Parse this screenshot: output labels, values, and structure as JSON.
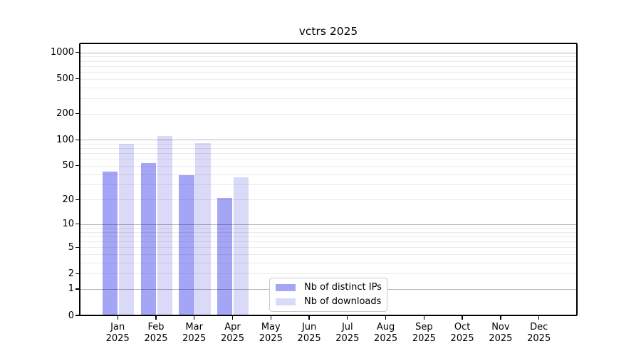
{
  "chart_data": {
    "type": "bar",
    "title": "vctrs 2025",
    "categories": [
      "Jan 2025",
      "Feb 2025",
      "Mar 2025",
      "Apr 2025",
      "May 2025",
      "Jun 2025",
      "Jul 2025",
      "Aug 2025",
      "Sep 2025",
      "Oct 2025",
      "Nov 2025",
      "Dec 2025"
    ],
    "series": [
      {
        "name": "Nb of distinct IPs",
        "color": "#a5a5f6",
        "values": [
          43,
          54,
          39,
          21,
          null,
          null,
          null,
          null,
          null,
          null,
          null,
          null
        ]
      },
      {
        "name": "Nb of downloads",
        "color": "#dadaf8",
        "values": [
          89,
          111,
          91,
          37,
          null,
          null,
          null,
          null,
          null,
          null,
          null,
          null
        ]
      }
    ],
    "yscale": "log1p",
    "y_ticks": [
      0,
      1,
      2,
      5,
      10,
      20,
      50,
      100,
      200,
      500,
      1000
    ],
    "y_major_gridlines": [
      1,
      10,
      100,
      1000
    ],
    "y_minor_gridlines": [
      2,
      3,
      4,
      5,
      6,
      7,
      8,
      9,
      20,
      30,
      40,
      50,
      60,
      70,
      80,
      90,
      200,
      300,
      400,
      500,
      600,
      700,
      800,
      900
    ],
    "ylim": [
      0,
      1265
    ],
    "xlabel": "",
    "ylabel": "",
    "grid": "on",
    "legend_position": "inside-bottom-center"
  },
  "colors": {
    "bar_distinct_ips": "#a5a5f6",
    "bar_downloads": "#dadaf8",
    "axis": "#000000",
    "legend_border": "#c9c9c9",
    "background": "#ffffff"
  }
}
